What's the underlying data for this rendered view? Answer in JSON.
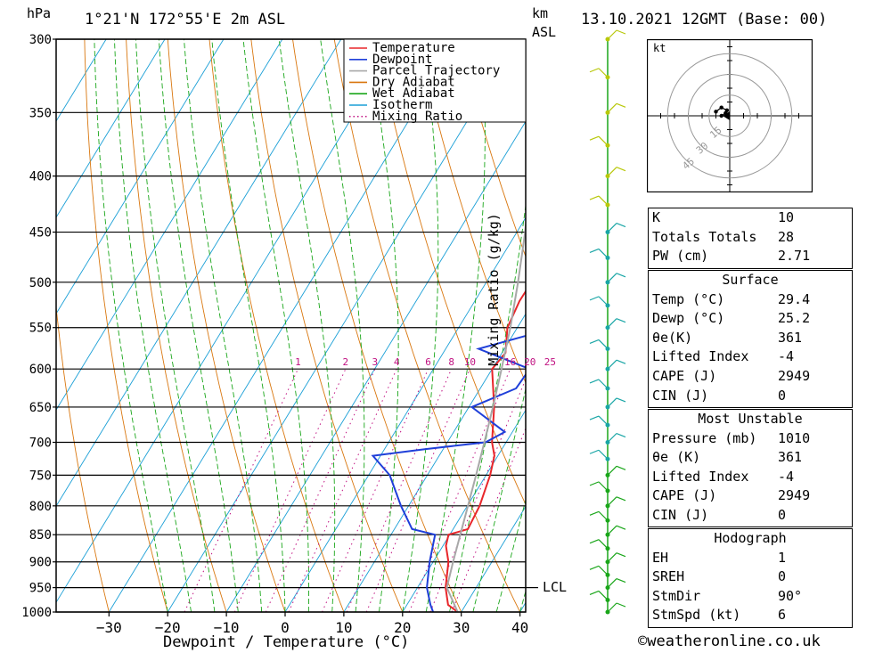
{
  "header": {
    "location": "1°21'N  172°55'E  2m  ASL",
    "datetime": "13.10.2021  12GMT  (Base: 00)",
    "unit_hpa": "hPa",
    "unit_km": "km",
    "unit_asl": "ASL"
  },
  "footer": {
    "copyright": "©weatheronline.co.uk"
  },
  "chart_data": {
    "type": "line",
    "title": "",
    "xlabel": "Dewpoint / Temperature (°C)",
    "ylabel": "hPa",
    "right_axis_label": "Mixing Ratio (g/kg)",
    "y_scale": "log",
    "x_ticks": [
      -30,
      -20,
      -10,
      0,
      10,
      20,
      30,
      40
    ],
    "xlim": [
      -40,
      40
    ],
    "p_ticks": [
      300,
      350,
      400,
      450,
      500,
      550,
      600,
      650,
      700,
      750,
      800,
      850,
      900,
      950,
      1000
    ],
    "ylim": [
      1000,
      300
    ],
    "lcl_label": "LCL",
    "lcl_pressure": 950,
    "mixing_ratio_labels": [
      "1",
      "2",
      "3",
      "4",
      "6",
      "8",
      "10",
      "16",
      "20",
      "25"
    ],
    "mixing_ratio_values": [
      1,
      2,
      3,
      4,
      6,
      8,
      10,
      16,
      20,
      25
    ],
    "legend": [
      {
        "name": "Temperature",
        "color": "#e8262a",
        "style": "solid"
      },
      {
        "name": "Dewpoint",
        "color": "#1f3fd9",
        "style": "solid"
      },
      {
        "name": "Parcel Trajectory",
        "color": "#a8a8a8",
        "style": "solid"
      },
      {
        "name": "Dry Adiabat",
        "color": "#d9770f",
        "style": "solid"
      },
      {
        "name": "Wet Adiabat",
        "color": "#1aa61a",
        "style": "solid"
      },
      {
        "name": "Isotherm",
        "color": "#1a9fd6",
        "style": "solid"
      },
      {
        "name": "Mixing Ratio",
        "color": "#c01080",
        "style": "dotted"
      }
    ],
    "series": [
      {
        "name": "Temperature",
        "color": "#e8262a",
        "points": [
          [
            1000,
            29.4
          ],
          [
            985,
            27.0
          ],
          [
            950,
            24.8
          ],
          [
            900,
            22.6
          ],
          [
            870,
            20.5
          ],
          [
            850,
            19.8
          ],
          [
            840,
            22.5
          ],
          [
            800,
            22.1
          ],
          [
            750,
            20.7
          ],
          [
            720,
            19.4
          ],
          [
            700,
            17.6
          ],
          [
            650,
            14.3
          ],
          [
            600,
            10.0
          ],
          [
            580,
            10.6
          ],
          [
            550,
            8.3
          ],
          [
            520,
            7.6
          ],
          [
            500,
            7.7
          ],
          [
            450,
            3.7
          ],
          [
            400,
            0.6
          ],
          [
            370,
            -4.3
          ],
          [
            350,
            -6.5
          ]
        ]
      },
      {
        "name": "Dewpoint",
        "color": "#1f3fd9",
        "points": [
          [
            1000,
            25.2
          ],
          [
            985,
            24.0
          ],
          [
            950,
            21.6
          ],
          [
            900,
            19.4
          ],
          [
            850,
            17.5
          ],
          [
            840,
            13.0
          ],
          [
            800,
            8.7
          ],
          [
            750,
            3.6
          ],
          [
            720,
            -1.3
          ],
          [
            710,
            7.0
          ],
          [
            700,
            16.5
          ],
          [
            685,
            18.7
          ],
          [
            650,
            10.5
          ],
          [
            625,
            16.1
          ],
          [
            600,
            16.4
          ],
          [
            575,
            5.6
          ],
          [
            535,
            23.4
          ],
          [
            500,
            25.0
          ],
          [
            450,
            20.1
          ],
          [
            400,
            13.8
          ],
          [
            375,
            27.8
          ],
          [
            365,
            16.4
          ],
          [
            350,
            33.7
          ],
          [
            300,
            28.8
          ]
        ]
      },
      {
        "name": "Parcel Trajectory",
        "color": "#a8a8a8",
        "points": [
          [
            1000,
            29.4
          ],
          [
            950,
            25.0
          ],
          [
            900,
            23.4
          ],
          [
            850,
            21.8
          ],
          [
            800,
            20.1
          ],
          [
            750,
            18.3
          ],
          [
            700,
            16.3
          ],
          [
            650,
            14.1
          ],
          [
            600,
            11.6
          ],
          [
            550,
            8.8
          ],
          [
            500,
            5.4
          ],
          [
            450,
            1.4
          ],
          [
            400,
            -3.5
          ],
          [
            370,
            -7.0
          ]
        ]
      }
    ]
  },
  "hodograph": {
    "unit": "kt",
    "ring_labels": [
      "15",
      "30",
      "45"
    ],
    "ring_values": [
      15,
      30,
      45
    ],
    "points_kt": [
      [
        -6,
        0
      ],
      [
        -3,
        2
      ],
      [
        -2,
        4
      ],
      [
        -6,
        6
      ],
      [
        -10,
        3
      ]
    ]
  },
  "indices": {
    "K": "10",
    "Totals Totals": "28",
    "PW (cm)": "2.71"
  },
  "surface": {
    "title": "Surface",
    "rows": [
      {
        "label": "Temp (°C)",
        "value": "29.4"
      },
      {
        "label": "Dewp (°C)",
        "value": "25.2"
      },
      {
        "label": "θe(K)",
        "value": "361"
      },
      {
        "label": "Lifted Index",
        "value": "-4"
      },
      {
        "label": "CAPE (J)",
        "value": "2949"
      },
      {
        "label": "CIN (J)",
        "value": "0"
      }
    ]
  },
  "most_unstable": {
    "title": "Most Unstable",
    "rows": [
      {
        "label": "Pressure (mb)",
        "value": "1010"
      },
      {
        "label": "θe (K)",
        "value": "361"
      },
      {
        "label": "Lifted Index",
        "value": "-4"
      },
      {
        "label": "CAPE (J)",
        "value": "2949"
      },
      {
        "label": "CIN (J)",
        "value": "0"
      }
    ]
  },
  "hodograph_panel": {
    "title": "Hodograph",
    "rows": [
      {
        "label": "EH",
        "value": "1"
      },
      {
        "label": "SREH",
        "value": "0"
      },
      {
        "label": "StmDir",
        "value": "90°"
      },
      {
        "label": "StmSpd (kt)",
        "value": "6"
      }
    ]
  },
  "wind_profile": {
    "color_low": "#1aa61a",
    "color_mid": "#1aa6a6",
    "color_high": "#b8c80a"
  }
}
